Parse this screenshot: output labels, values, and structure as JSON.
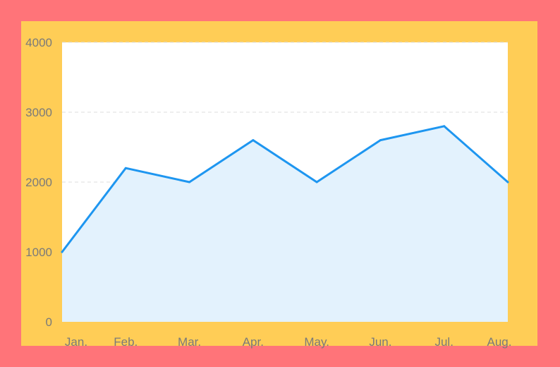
{
  "chart_data": {
    "type": "area",
    "categories": [
      "Jan.",
      "Feb.",
      "Mar.",
      "Apr.",
      "May.",
      "Jun.",
      "Jul.",
      "Aug."
    ],
    "values": [
      1000,
      2200,
      2000,
      2600,
      2000,
      2600,
      2800,
      2000
    ],
    "ylim": [
      0,
      4000
    ],
    "yticks": [
      "0",
      "1000",
      "2000",
      "3000",
      "4000"
    ],
    "title": "",
    "xlabel": "",
    "ylabel": "",
    "grid": true,
    "colors": {
      "page_background": "#ff7479",
      "frame_background": "#ffcd56",
      "plot_background": "#ffffff",
      "line": "#1e96f0",
      "area_fill": "#e3f2fd",
      "gridline": "#dedede",
      "tick_text": "#7a7a7a"
    }
  }
}
